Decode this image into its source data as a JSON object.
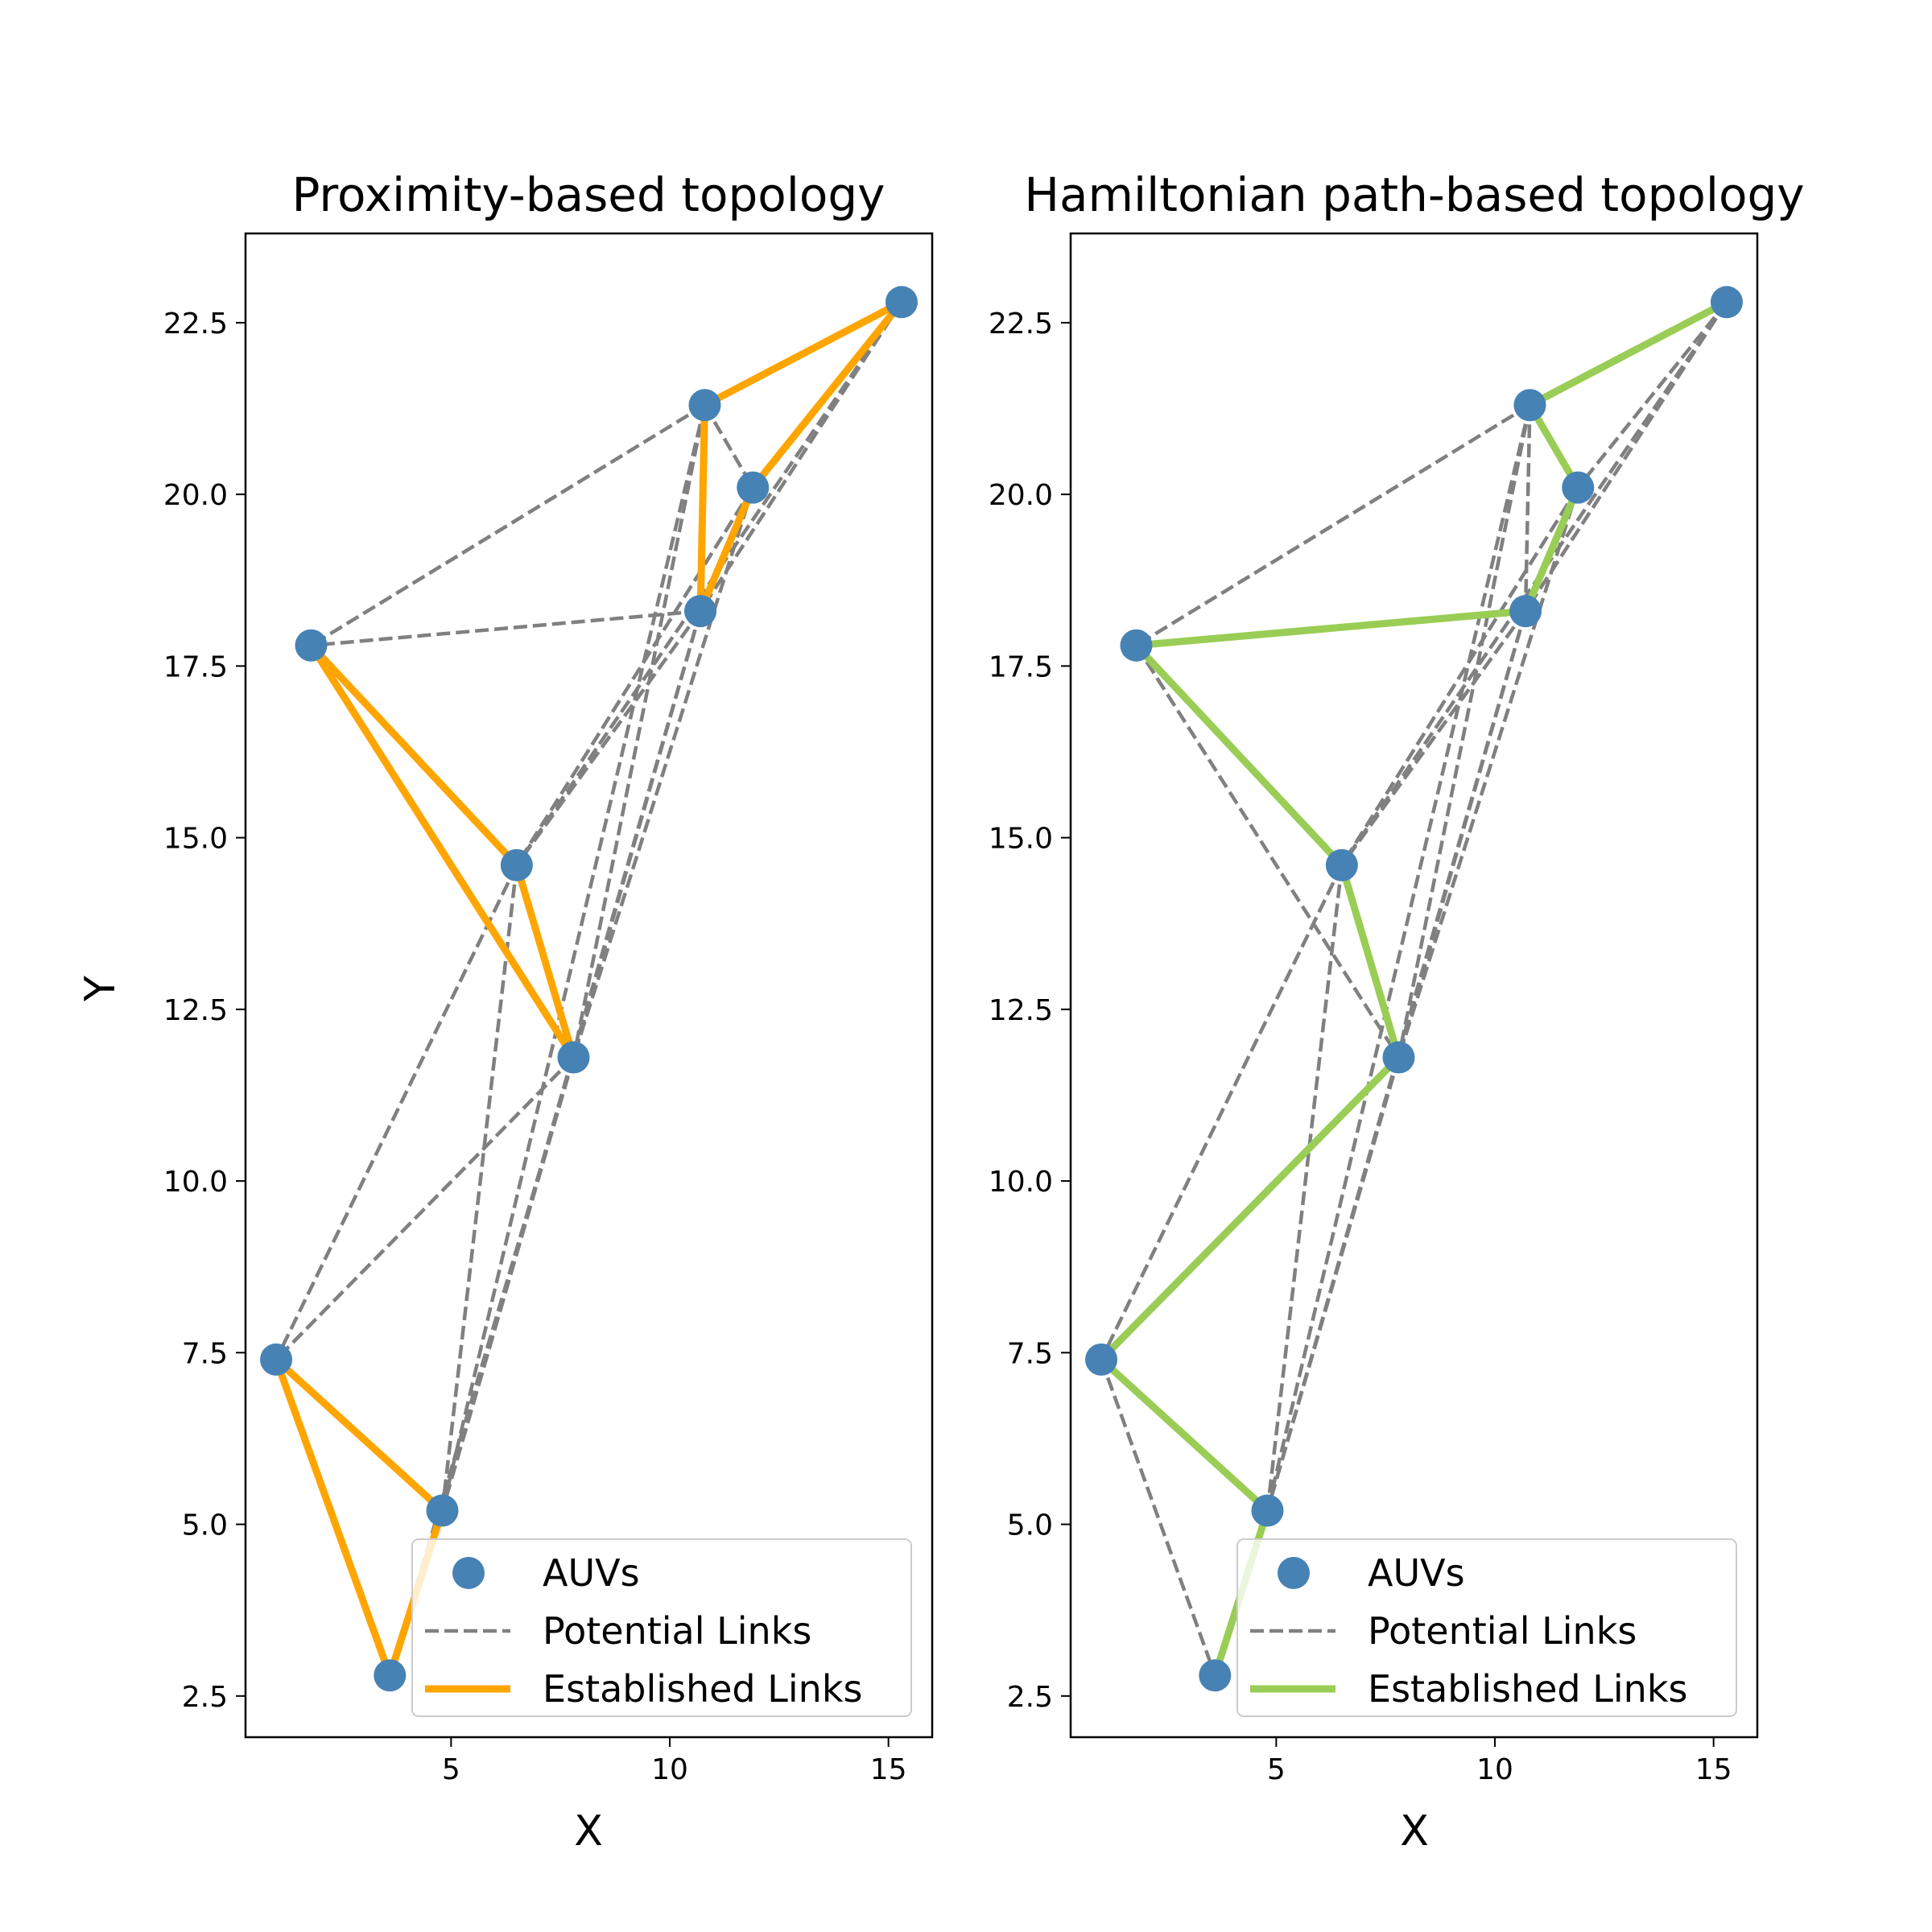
{
  "chart_data": [
    {
      "type": "scatter",
      "title": "Proximity-based topology",
      "xlabel": "X",
      "ylabel": "Y",
      "xlim": [
        0.3,
        16
      ],
      "ylim": [
        1.9,
        23.8
      ],
      "xticks": [
        5,
        10,
        15
      ],
      "yticks": [
        2.5,
        5.0,
        7.5,
        10.0,
        12.5,
        15.0,
        17.5,
        20.0,
        22.5
      ],
      "grid": false,
      "legend_position": "lower-right",
      "legend": [
        "AUVs",
        "Potential Links",
        "Established Links"
      ],
      "colors": {
        "nodes": "#4682b4",
        "potential": "#808080",
        "established": "#ffa500"
      },
      "nodes": [
        {
          "x": 15.3,
          "y": 22.8
        },
        {
          "x": 10.8,
          "y": 21.3
        },
        {
          "x": 11.9,
          "y": 20.1
        },
        {
          "x": 10.7,
          "y": 18.3
        },
        {
          "x": 1.8,
          "y": 17.8
        },
        {
          "x": 6.5,
          "y": 14.6
        },
        {
          "x": 7.8,
          "y": 11.8
        },
        {
          "x": 1.0,
          "y": 7.4
        },
        {
          "x": 4.8,
          "y": 5.2
        },
        {
          "x": 3.6,
          "y": 2.8
        }
      ],
      "potential_links": [
        [
          0,
          1
        ],
        [
          0,
          2
        ],
        [
          0,
          3
        ],
        [
          0,
          5
        ],
        [
          1,
          2
        ],
        [
          1,
          3
        ],
        [
          1,
          4
        ],
        [
          1,
          6
        ],
        [
          1,
          8
        ],
        [
          2,
          3
        ],
        [
          2,
          5
        ],
        [
          2,
          6
        ],
        [
          3,
          4
        ],
        [
          3,
          5
        ],
        [
          3,
          6
        ],
        [
          3,
          8
        ],
        [
          4,
          5
        ],
        [
          4,
          6
        ],
        [
          5,
          7
        ],
        [
          5,
          8
        ],
        [
          6,
          7
        ],
        [
          6,
          8
        ],
        [
          6,
          9
        ]
      ],
      "established_links": [
        [
          0,
          1
        ],
        [
          0,
          2
        ],
        [
          1,
          3
        ],
        [
          2,
          3
        ],
        [
          4,
          5
        ],
        [
          4,
          6
        ],
        [
          5,
          6
        ],
        [
          7,
          8
        ],
        [
          7,
          9
        ],
        [
          8,
          9
        ]
      ]
    },
    {
      "type": "scatter",
      "title": "Hamiltonian path-based topology",
      "xlabel": "X",
      "ylabel": "",
      "xlim": [
        0.3,
        16
      ],
      "ylim": [
        1.9,
        23.8
      ],
      "xticks": [
        5,
        10,
        15
      ],
      "yticks": [
        2.5,
        5.0,
        7.5,
        10.0,
        12.5,
        15.0,
        17.5,
        20.0,
        22.5
      ],
      "grid": false,
      "legend_position": "lower-right",
      "legend": [
        "AUVs",
        "Potential Links",
        "Established Links"
      ],
      "colors": {
        "nodes": "#4682b4",
        "potential": "#808080",
        "established": "#9acd55"
      },
      "nodes": [
        {
          "x": 15.3,
          "y": 22.8
        },
        {
          "x": 10.8,
          "y": 21.3
        },
        {
          "x": 11.9,
          "y": 20.1
        },
        {
          "x": 10.7,
          "y": 18.3
        },
        {
          "x": 1.8,
          "y": 17.8
        },
        {
          "x": 6.5,
          "y": 14.6
        },
        {
          "x": 7.8,
          "y": 11.8
        },
        {
          "x": 1.0,
          "y": 7.4
        },
        {
          "x": 4.8,
          "y": 5.2
        },
        {
          "x": 3.6,
          "y": 2.8
        }
      ],
      "potential_links": [
        [
          0,
          1
        ],
        [
          0,
          2
        ],
        [
          0,
          3
        ],
        [
          0,
          5
        ],
        [
          1,
          2
        ],
        [
          1,
          3
        ],
        [
          1,
          4
        ],
        [
          1,
          6
        ],
        [
          1,
          8
        ],
        [
          2,
          3
        ],
        [
          2,
          5
        ],
        [
          2,
          6
        ],
        [
          3,
          4
        ],
        [
          3,
          5
        ],
        [
          3,
          6
        ],
        [
          3,
          8
        ],
        [
          4,
          5
        ],
        [
          4,
          6
        ],
        [
          5,
          7
        ],
        [
          5,
          8
        ],
        [
          6,
          7
        ],
        [
          6,
          8
        ],
        [
          7,
          9
        ]
      ],
      "established_links": [
        [
          0,
          1
        ],
        [
          1,
          2
        ],
        [
          2,
          3
        ],
        [
          3,
          4
        ],
        [
          4,
          5
        ],
        [
          5,
          6
        ],
        [
          6,
          7
        ],
        [
          7,
          8
        ],
        [
          8,
          9
        ]
      ]
    }
  ]
}
